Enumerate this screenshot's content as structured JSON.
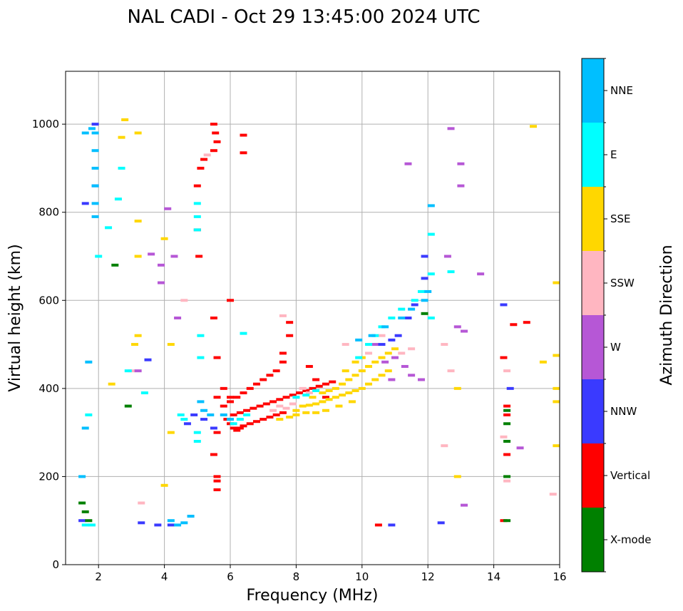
{
  "chart_data": {
    "type": "scatter",
    "title": "NAL CADI - Oct 29 13:45:00 2024 UTC",
    "xlabel": "Frequency (MHz)",
    "ylabel": "Virtual height (km)",
    "xlim": [
      1,
      16
    ],
    "ylim": [
      0,
      1120
    ],
    "xticks": [
      2,
      4,
      6,
      8,
      10,
      12,
      14,
      16
    ],
    "yticks": [
      0,
      200,
      400,
      600,
      800,
      1000
    ],
    "grid": true,
    "colorbar": {
      "title": "Azimuth Direction",
      "categories": [
        {
          "name": "X-mode",
          "color": "#008000"
        },
        {
          "name": "Vertical",
          "color": "#ff0000"
        },
        {
          "name": "NNW",
          "color": "#3a3aff"
        },
        {
          "name": "W",
          "color": "#b657d6"
        },
        {
          "name": "SSW",
          "color": "#ffb6c1"
        },
        {
          "name": "SSE",
          "color": "#ffd700"
        },
        {
          "name": "E",
          "color": "#00ffff"
        },
        {
          "name": "NNE",
          "color": "#00bfff"
        }
      ]
    },
    "series": [
      {
        "name": "Vertical",
        "points": [
          [
            5.0,
            860
          ],
          [
            5.0,
            760
          ],
          [
            5.05,
            700
          ],
          [
            5.5,
            560
          ],
          [
            5.6,
            470
          ],
          [
            5.8,
            400
          ],
          [
            5.6,
            380
          ],
          [
            5.8,
            360
          ],
          [
            5.6,
            300
          ],
          [
            5.5,
            250
          ],
          [
            5.6,
            200
          ],
          [
            5.6,
            190
          ],
          [
            5.6,
            170
          ],
          [
            5.1,
            900
          ],
          [
            5.2,
            920
          ],
          [
            5.5,
            1000
          ],
          [
            5.55,
            980
          ],
          [
            5.6,
            960
          ],
          [
            5.5,
            940
          ],
          [
            6.4,
            975
          ],
          [
            6.4,
            935
          ],
          [
            5.9,
            330
          ],
          [
            6.0,
            320
          ],
          [
            6.1,
            310
          ],
          [
            6.2,
            305
          ],
          [
            6.3,
            310
          ],
          [
            6.4,
            315
          ],
          [
            6.6,
            320
          ],
          [
            6.8,
            325
          ],
          [
            7.0,
            330
          ],
          [
            7.2,
            335
          ],
          [
            7.4,
            340
          ],
          [
            7.6,
            345
          ],
          [
            6.0,
            370
          ],
          [
            6.2,
            380
          ],
          [
            6.4,
            390
          ],
          [
            6.6,
            400
          ],
          [
            6.8,
            410
          ],
          [
            7.0,
            420
          ],
          [
            7.2,
            430
          ],
          [
            7.4,
            440
          ],
          [
            7.6,
            460
          ],
          [
            7.6,
            480
          ],
          [
            7.8,
            520
          ],
          [
            7.8,
            550
          ],
          [
            6.1,
            340
          ],
          [
            6.3,
            345
          ],
          [
            6.5,
            350
          ],
          [
            6.7,
            355
          ],
          [
            6.9,
            360
          ],
          [
            7.1,
            365
          ],
          [
            7.3,
            370
          ],
          [
            7.5,
            375
          ],
          [
            7.7,
            380
          ],
          [
            7.9,
            385
          ],
          [
            8.1,
            390
          ],
          [
            8.3,
            395
          ],
          [
            8.5,
            400
          ],
          [
            8.7,
            405
          ],
          [
            8.9,
            410
          ],
          [
            9.1,
            415
          ],
          [
            8.4,
            450
          ],
          [
            8.6,
            420
          ],
          [
            8.9,
            380
          ],
          [
            6.0,
            600
          ],
          [
            6.0,
            380
          ],
          [
            10.5,
            90
          ],
          [
            14.3,
            100
          ],
          [
            14.4,
            250
          ],
          [
            14.3,
            470
          ],
          [
            14.6,
            545
          ],
          [
            15.0,
            550
          ],
          [
            14.4,
            340
          ],
          [
            14.4,
            360
          ]
        ]
      },
      {
        "name": "SSE",
        "points": [
          [
            8.2,
            360
          ],
          [
            8.4,
            362
          ],
          [
            8.6,
            365
          ],
          [
            8.8,
            370
          ],
          [
            9.0,
            375
          ],
          [
            9.2,
            380
          ],
          [
            9.4,
            385
          ],
          [
            9.6,
            390
          ],
          [
            9.8,
            395
          ],
          [
            10.0,
            400
          ],
          [
            10.2,
            410
          ],
          [
            10.4,
            420
          ],
          [
            10.6,
            430
          ],
          [
            10.8,
            440
          ],
          [
            8.5,
            380
          ],
          [
            8.8,
            390
          ],
          [
            9.0,
            395
          ],
          [
            9.2,
            400
          ],
          [
            9.4,
            410
          ],
          [
            9.6,
            420
          ],
          [
            9.8,
            430
          ],
          [
            10.0,
            440
          ],
          [
            10.2,
            450
          ],
          [
            10.4,
            460
          ],
          [
            10.6,
            470
          ],
          [
            10.8,
            480
          ],
          [
            11.0,
            490
          ],
          [
            8.0,
            350
          ],
          [
            8.3,
            345
          ],
          [
            8.6,
            345
          ],
          [
            8.9,
            350
          ],
          [
            9.3,
            360
          ],
          [
            9.7,
            370
          ],
          [
            7.5,
            330
          ],
          [
            7.8,
            335
          ],
          [
            8.0,
            340
          ],
          [
            9.5,
            440
          ],
          [
            9.8,
            460
          ],
          [
            10.0,
            470
          ],
          [
            2.8,
            1010
          ],
          [
            3.2,
            980
          ],
          [
            2.7,
            970
          ],
          [
            3.2,
            780
          ],
          [
            3.2,
            700
          ],
          [
            3.2,
            520
          ],
          [
            3.1,
            500
          ],
          [
            4.0,
            740
          ],
          [
            4.2,
            500
          ],
          [
            4.0,
            180
          ],
          [
            12.9,
            200
          ],
          [
            12.9,
            400
          ],
          [
            15.2,
            995
          ],
          [
            15.5,
            460
          ],
          [
            15.9,
            640
          ],
          [
            15.9,
            475
          ],
          [
            15.9,
            400
          ],
          [
            15.9,
            370
          ],
          [
            15.9,
            270
          ],
          [
            2.4,
            410
          ],
          [
            4.2,
            300
          ]
        ]
      },
      {
        "name": "SSW",
        "points": [
          [
            7.3,
            350
          ],
          [
            7.5,
            360
          ],
          [
            7.7,
            355
          ],
          [
            7.9,
            365
          ],
          [
            8.0,
            380
          ],
          [
            8.2,
            400
          ],
          [
            8.4,
            390
          ],
          [
            7.6,
            565
          ],
          [
            9.5,
            500
          ],
          [
            10.2,
            480
          ],
          [
            10.6,
            520
          ],
          [
            11.2,
            480
          ],
          [
            11.5,
            490
          ],
          [
            12.5,
            500
          ],
          [
            12.5,
            270
          ],
          [
            12.7,
            440
          ],
          [
            4.6,
            600
          ],
          [
            4.8,
            110
          ],
          [
            3.0,
            440
          ],
          [
            3.3,
            140
          ],
          [
            14.4,
            440
          ],
          [
            14.3,
            290
          ],
          [
            14.4,
            190
          ],
          [
            15.8,
            160
          ],
          [
            5.3,
            930
          ]
        ]
      },
      {
        "name": "W",
        "points": [
          [
            10.4,
            500
          ],
          [
            10.7,
            460
          ],
          [
            11.0,
            470
          ],
          [
            11.3,
            450
          ],
          [
            11.5,
            430
          ],
          [
            11.8,
            420
          ],
          [
            10.9,
            420
          ],
          [
            11.4,
            910
          ],
          [
            12.7,
            990
          ],
          [
            13.0,
            910
          ],
          [
            13.0,
            860
          ],
          [
            12.6,
            700
          ],
          [
            12.9,
            540
          ],
          [
            13.1,
            530
          ],
          [
            13.6,
            660
          ],
          [
            13.1,
            135
          ],
          [
            3.6,
            705
          ],
          [
            3.9,
            680
          ],
          [
            4.3,
            700
          ],
          [
            3.9,
            640
          ],
          [
            3.2,
            440
          ],
          [
            14.8,
            265
          ],
          [
            4.1,
            808
          ],
          [
            4.4,
            560
          ]
        ]
      },
      {
        "name": "NNW",
        "points": [
          [
            4.9,
            340
          ],
          [
            5.2,
            330
          ],
          [
            4.7,
            320
          ],
          [
            5.5,
            310
          ],
          [
            4.2,
            90
          ],
          [
            3.8,
            90
          ],
          [
            3.3,
            95
          ],
          [
            1.5,
            100
          ],
          [
            1.9,
            1000
          ],
          [
            10.6,
            500
          ],
          [
            10.9,
            510
          ],
          [
            11.1,
            520
          ],
          [
            11.4,
            560
          ],
          [
            11.6,
            590
          ],
          [
            11.9,
            650
          ],
          [
            11.9,
            700
          ],
          [
            12.4,
            95
          ],
          [
            10.9,
            90
          ],
          [
            14.3,
            590
          ],
          [
            14.5,
            400
          ],
          [
            3.5,
            465
          ],
          [
            1.6,
            820
          ],
          [
            1.9,
            860
          ]
        ]
      },
      {
        "name": "E",
        "points": [
          [
            5.0,
            820
          ],
          [
            5.0,
            760
          ],
          [
            5.0,
            790
          ],
          [
            5.1,
            520
          ],
          [
            5.1,
            470
          ],
          [
            4.5,
            340
          ],
          [
            4.6,
            330
          ],
          [
            5.0,
            300
          ],
          [
            5.0,
            280
          ],
          [
            6.1,
            320
          ],
          [
            6.3,
            330
          ],
          [
            6.5,
            340
          ],
          [
            8.0,
            380
          ],
          [
            8.3,
            385
          ],
          [
            8.6,
            395
          ],
          [
            9.9,
            470
          ],
          [
            10.2,
            500
          ],
          [
            10.4,
            520
          ],
          [
            10.6,
            540
          ],
          [
            10.9,
            560
          ],
          [
            11.2,
            580
          ],
          [
            11.6,
            600
          ],
          [
            11.8,
            620
          ],
          [
            12.1,
            750
          ],
          [
            12.1,
            660
          ],
          [
            12.1,
            560
          ],
          [
            12.7,
            665
          ],
          [
            2.3,
            765
          ],
          [
            2.6,
            830
          ],
          [
            2.7,
            900
          ],
          [
            2.0,
            700
          ],
          [
            1.7,
            340
          ],
          [
            1.6,
            90
          ],
          [
            1.8,
            90
          ],
          [
            3.4,
            390
          ],
          [
            6.4,
            525
          ],
          [
            2.9,
            440
          ]
        ]
      },
      {
        "name": "NNE",
        "points": [
          [
            1.9,
            980
          ],
          [
            1.9,
            940
          ],
          [
            1.9,
            900
          ],
          [
            1.9,
            860
          ],
          [
            1.9,
            820
          ],
          [
            1.9,
            790
          ],
          [
            1.8,
            990
          ],
          [
            1.6,
            980
          ],
          [
            4.8,
            110
          ],
          [
            4.6,
            95
          ],
          [
            4.4,
            90
          ],
          [
            4.2,
            100
          ],
          [
            5.1,
            370
          ],
          [
            5.2,
            350
          ],
          [
            5.4,
            340
          ],
          [
            5.8,
            340
          ],
          [
            6.0,
            330
          ],
          [
            12.1,
            815
          ],
          [
            12.0,
            620
          ],
          [
            11.9,
            600
          ],
          [
            11.5,
            580
          ],
          [
            11.2,
            560
          ],
          [
            10.7,
            540
          ],
          [
            10.3,
            520
          ],
          [
            9.9,
            510
          ],
          [
            1.7,
            460
          ],
          [
            1.6,
            310
          ],
          [
            1.5,
            200
          ]
        ]
      },
      {
        "name": "X-mode",
        "points": [
          [
            1.5,
            140
          ],
          [
            1.6,
            120
          ],
          [
            1.7,
            100
          ],
          [
            2.5,
            680
          ],
          [
            2.9,
            360
          ],
          [
            11.9,
            570
          ],
          [
            14.4,
            100
          ],
          [
            14.4,
            200
          ],
          [
            14.4,
            280
          ],
          [
            14.4,
            320
          ],
          [
            14.4,
            350
          ]
        ]
      }
    ]
  }
}
